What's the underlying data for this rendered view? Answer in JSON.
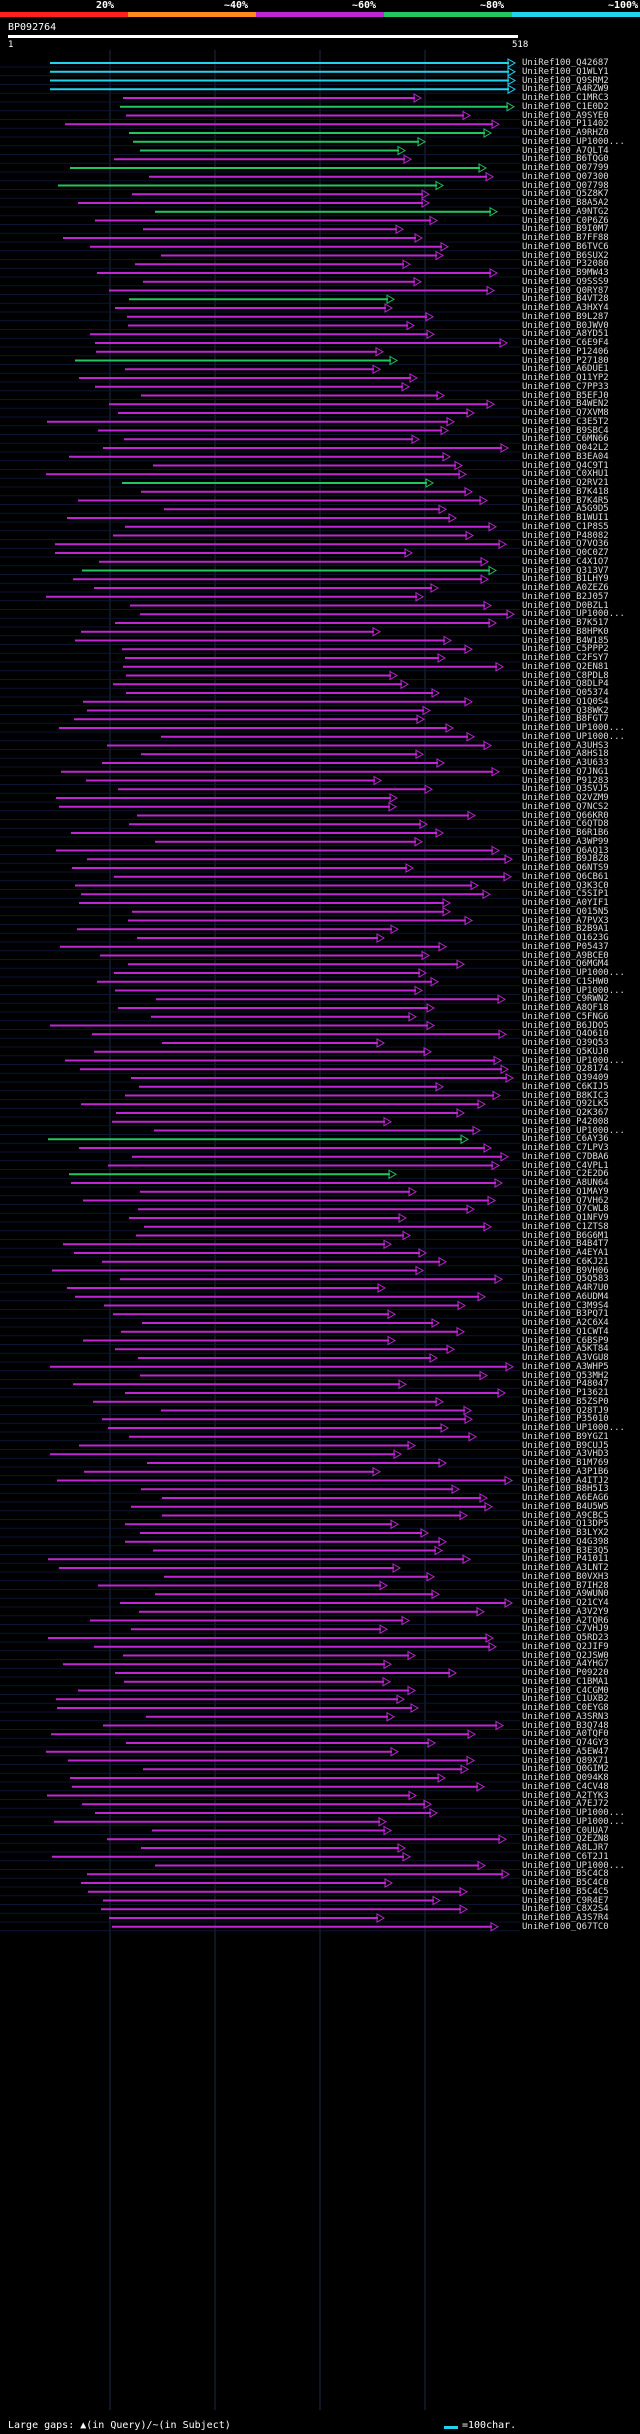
{
  "legend": [
    {
      "label": "20%",
      "color": "#ff1f1f"
    },
    {
      "label": "~40%",
      "color": "#ff8c1a"
    },
    {
      "label": "~60%",
      "color": "#c026d3"
    },
    {
      "label": "~80%",
      "color": "#22c55e"
    },
    {
      "label": "~100%",
      "color": "#22d3ee"
    }
  ],
  "query_id": "BP092764",
  "ruler": {
    "start": "1",
    "end": "518"
  },
  "hits": [
    "UniRef100_Q42687",
    "UniRef100_Q1WLY1",
    "UniRef100_Q9SRM2",
    "UniRef100_A4RZW9",
    "UniRef100_C1MRC3",
    "UniRef100_C1E0D2",
    "UniRef100_A9SYE0",
    "UniRef100_P11402",
    "UniRef100_A9RHZ0",
    "UniRef100_UP1000...",
    "UniRef100_A7QLT4",
    "UniRef100_B6TQG0",
    "UniRef100_Q07799",
    "UniRef100_Q07300",
    "UniRef100_Q07798",
    "UniRef100_Q5Z8K7",
    "UniRef100_B8A5A2",
    "UniRef100_A9NTG2",
    "UniRef100_C0P6Z6",
    "UniRef100_B9I0M7",
    "UniRef100_B7FF88",
    "UniRef100_B6TVC6",
    "UniRef100_B6SUX2",
    "UniRef100_P32080",
    "UniRef100_B9MW43",
    "UniRef100_Q9SSS9",
    "UniRef100_Q0RY87",
    "UniRef100_B4VT28",
    "UniRef100_A3HXY4",
    "UniRef100_B9L287",
    "UniRef100_B0JWV0",
    "UniRef100_A8YD51",
    "UniRef100_C6E9F4",
    "UniRef100_P12406",
    "UniRef100_P27180",
    "UniRef100_A6DUE1",
    "UniRef100_Q11YP2",
    "UniRef100_C7PP33",
    "UniRef100_B5EFJ0",
    "UniRef100_B4WEN2",
    "UniRef100_Q7XVM8",
    "UniRef100_C3E5T2",
    "UniRef100_B9SBC4",
    "UniRef100_C6MN66",
    "UniRef100_Q042L2",
    "UniRef100_B3EA04",
    "UniRef100_Q4C9T1",
    "UniRef100_C0XHU1",
    "UniRef100_Q2RV21",
    "UniRef100_B7K418",
    "UniRef100_B7K4R5",
    "UniRef100_A5G9D5",
    "UniRef100_B1WUI1",
    "UniRef100_C1P8S5",
    "UniRef100_P48082",
    "UniRef100_Q7VO36",
    "UniRef100_Q0C0Z7",
    "UniRef100_C4X1O7",
    "UniRef100_Q313V7",
    "UniRef100_B1LHY9",
    "UniRef100_A0ZEZ6",
    "UniRef100_B2J057",
    "UniRef100_D0BZL1",
    "UniRef100_UP1000...",
    "UniRef100_B7K517",
    "UniRef100_B8HPK0",
    "UniRef100_B4W185",
    "UniRef100_C5PPP2",
    "UniRef100_C2FSY7",
    "UniRef100_Q2EN81",
    "UniRef100_C8PDL8",
    "UniRef100_Q8DLP4",
    "UniRef100_Q05374",
    "UniRef100_Q1Q0S4",
    "UniRef100_Q38WK2",
    "UniRef100_B8FGT7",
    "UniRef100_UP1000...",
    "UniRef100_UP1000...",
    "UniRef100_A3UHS3",
    "UniRef100_A8HS18",
    "UniRef100_A3U633",
    "UniRef100_Q7JNG1",
    "UniRef100_P91283",
    "UniRef100_Q3SVJ5",
    "UniRef100_Q2VZM9",
    "UniRef100_Q7NCS2",
    "UniRef100_Q66KR0",
    "UniRef100_C6QTD8",
    "UniRef100_B6R1B6",
    "UniRef100_A3WP99",
    "UniRef100_Q6AQ13",
    "UniRef100_B9JBZ8",
    "UniRef100_Q6NTS9",
    "UniRef100_Q6CB61",
    "UniRef100_Q3K3C0",
    "UniRef100_C5SIP1",
    "UniRef100_A0YIF1",
    "UniRef100_Q015N5",
    "UniRef100_A7PVX3",
    "UniRef100_B2B9A1",
    "UniRef100_Q1623G",
    "UniRef100_P05437",
    "UniRef100_A9BCE0",
    "UniRef100_Q6MGM4",
    "UniRef100_UP1000...",
    "UniRef100_C1SHW0",
    "UniRef100_UP1000...",
    "UniRef100_C9RWN2",
    "UniRef100_A8QF18",
    "UniRef100_C5FNG6",
    "UniRef100_B6JDO5",
    "UniRef100_Q4O610",
    "UniRef100_Q39Q53",
    "UniRef100_Q5KUJ0",
    "UniRef100_UP1000...",
    "UniRef100_Q28174",
    "UniRef100_Q39409",
    "UniRef100_C6KIJ5",
    "UniRef100_B8KIC3",
    "UniRef100_Q92LK5",
    "UniRef100_Q2K367",
    "UniRef100_P42008",
    "UniRef100_UP1000...",
    "UniRef100_C6AY36",
    "UniRef100_C7LPV3",
    "UniRef100_C7DBA6",
    "UniRef100_C4VPL1",
    "UniRef100_C2E2D6",
    "UniRef100_A8UN64",
    "UniRef100_Q1MAY9",
    "UniRef100_Q7VH62",
    "UniRef100_Q7CWL8",
    "UniRef100_Q1NFV9",
    "UniRef100_C1ZTS8",
    "UniRef100_B6G6M1",
    "UniRef100_B4B4T7",
    "UniRef100_A4EYA1",
    "UniRef100_C6KJ21",
    "UniRef100_B9VH06",
    "UniRef100_Q5Q583",
    "UniRef100_A4R7U0",
    "UniRef100_A6UDM4",
    "UniRef100_C3M9S4",
    "UniRef100_B3PQ71",
    "UniRef100_A2C6X4",
    "UniRef100_Q1CWT4",
    "UniRef100_C6BSP9",
    "UniRef100_A5KT84",
    "UniRef100_A3VGU8",
    "UniRef100_A3WHP5",
    "UniRef100_Q53MH2",
    "UniRef100_P48047",
    "UniRef100_P13621",
    "UniRef100_B5ZSP0",
    "UniRef100_Q28TJ9",
    "UniRef100_P35010",
    "UniRef100_UP1000...",
    "UniRef100_B9YGZ1",
    "UniRef100_B9CUJ5",
    "UniRef100_A3VHD3",
    "UniRef100_B1M769",
    "UniRef100_A3P1B6",
    "UniRef100_A4ITJ2",
    "UniRef100_B8H5I3",
    "UniRef100_A6EAG6",
    "UniRef100_B4U5W5",
    "UniRef100_A9CBC5",
    "UniRef100_Q13DP5",
    "UniRef100_B3LYX2",
    "UniRef100_Q4G398",
    "UniRef100_B3E3Q5",
    "UniRef100_P41011",
    "UniRef100_A3LNT2",
    "UniRef100_B0VXH3",
    "UniRef100_B7IH28",
    "UniRef100_A9WUN0",
    "UniRef100_Q21CY4",
    "UniRef100_A3V2Y9",
    "UniRef100_A2TQR6",
    "UniRef100_C7VHJ9",
    "UniRef100_Q5RD23",
    "UniRef100_Q2JIF9",
    "UniRef100_Q2JSW0",
    "UniRef100_A4YHG7",
    "UniRef100_P09220",
    "UniRef100_C1BMA1",
    "UniRef100_C4CGM0",
    "UniRef100_C1UXB2",
    "UniRef100_C0EYG8",
    "UniRef100_A3SRN3",
    "UniRef100_B3Q748",
    "UniRef100_A0TQF0",
    "UniRef100_Q74GY3",
    "UniRef100_A5EW47",
    "UniRef100_Q89X71",
    "UniRef100_Q0GIM2",
    "UniRef100_Q094K8",
    "UniRef100_C4CV48",
    "UniRef100_A2TYK3",
    "UniRef100_A7EJ72",
    "UniRef100_UP1000...",
    "UniRef100_UP1000...",
    "UniRef100_C0UUA7",
    "UniRef100_Q2EZN8",
    "UniRef100_A8LJR7",
    "UniRef100_C6T2J1",
    "UniRef100_UP1000...",
    "UniRef100_B5C4C8",
    "UniRef100_B5C4C0",
    "UniRef100_B5C4C5",
    "UniRef100_C9R4E7",
    "UniRef100_C8X2S4",
    "UniRef100_A3S7R4",
    "UniRef100_Q67TC0"
  ],
  "footer": {
    "left": "Large gaps: ▲(in Query)/~(in Subject)",
    "right": "=100char."
  }
}
